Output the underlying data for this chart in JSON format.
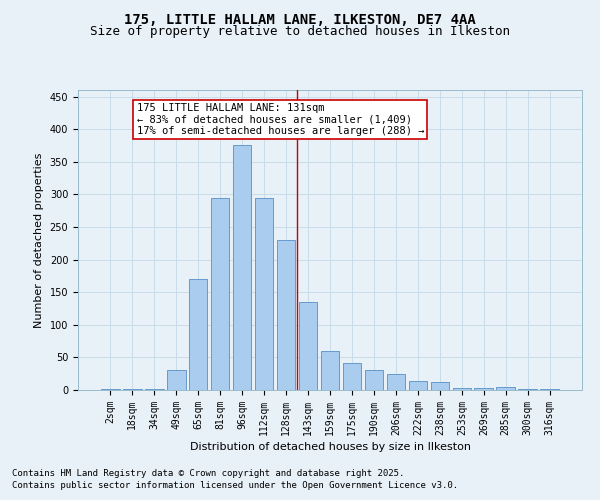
{
  "title": "175, LITTLE HALLAM LANE, ILKESTON, DE7 4AA",
  "subtitle": "Size of property relative to detached houses in Ilkeston",
  "xlabel": "Distribution of detached houses by size in Ilkeston",
  "ylabel": "Number of detached properties",
  "categories": [
    "2sqm",
    "18sqm",
    "34sqm",
    "49sqm",
    "65sqm",
    "81sqm",
    "96sqm",
    "112sqm",
    "128sqm",
    "143sqm",
    "159sqm",
    "175sqm",
    "190sqm",
    "206sqm",
    "222sqm",
    "238sqm",
    "253sqm",
    "269sqm",
    "285sqm",
    "300sqm",
    "316sqm"
  ],
  "values": [
    2,
    2,
    2,
    30,
    170,
    295,
    375,
    295,
    230,
    135,
    60,
    42,
    30,
    25,
    14,
    13,
    3,
    3,
    5,
    2,
    2
  ],
  "bar_color": "#aaccee",
  "bar_edge_color": "#6699cc",
  "grid_color": "#c8dcea",
  "bg_color": "#e8f0f8",
  "annotation_text": "175 LITTLE HALLAM LANE: 131sqm\n← 83% of detached houses are smaller (1,409)\n17% of semi-detached houses are larger (288) →",
  "annotation_box_color": "#ffffff",
  "annotation_border_color": "#cc0000",
  "vline_x_index": 8.5,
  "vline_color": "#cc0000",
  "ylim": [
    0,
    460
  ],
  "yticks": [
    0,
    50,
    100,
    150,
    200,
    250,
    300,
    350,
    400,
    450
  ],
  "footnote1": "Contains HM Land Registry data © Crown copyright and database right 2025.",
  "footnote2": "Contains public sector information licensed under the Open Government Licence v3.0.",
  "title_fontsize": 10,
  "subtitle_fontsize": 9,
  "axis_label_fontsize": 8,
  "tick_fontsize": 7,
  "annotation_fontsize": 7.5,
  "footnote_fontsize": 6.5,
  "ylabel_fontsize": 8
}
